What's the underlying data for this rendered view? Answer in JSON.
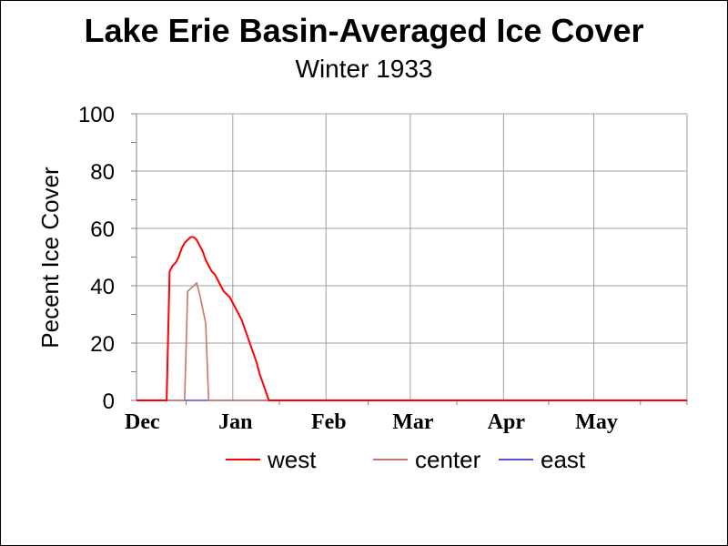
{
  "title": "Lake Erie Basin-Averaged Ice Cover",
  "subtitle": "Winter 1933",
  "chart_data": {
    "type": "line",
    "title": "Lake Erie Basin-Averaged Ice Cover",
    "subtitle": "Winter 1933",
    "xlabel": "",
    "ylabel": "Pecent Ice Cover",
    "ylim": [
      0,
      100
    ],
    "yticks": [
      0,
      20,
      40,
      60,
      80,
      100
    ],
    "xlim": [
      -1,
      182
    ],
    "x_unit": "days from Dec 1",
    "xticks": [
      {
        "label": "Dec",
        "day": 0
      },
      {
        "label": "Jan",
        "day": 31
      },
      {
        "label": "Feb",
        "day": 62
      },
      {
        "label": "Mar",
        "day": 90
      },
      {
        "label": "Apr",
        "day": 121
      },
      {
        "label": "May",
        "day": 151
      }
    ],
    "grid": true,
    "legend": "bottom",
    "series": [
      {
        "name": "west",
        "color": "#ff0000",
        "points": [
          [
            -1,
            0
          ],
          [
            9,
            0
          ],
          [
            10,
            45
          ],
          [
            11,
            47
          ],
          [
            12,
            48
          ],
          [
            13,
            50
          ],
          [
            14,
            53
          ],
          [
            15,
            55
          ],
          [
            16,
            56
          ],
          [
            17,
            57
          ],
          [
            18,
            57
          ],
          [
            19,
            56
          ],
          [
            20,
            54
          ],
          [
            21,
            52
          ],
          [
            22,
            49
          ],
          [
            23,
            47
          ],
          [
            24,
            45
          ],
          [
            25,
            44
          ],
          [
            26,
            42
          ],
          [
            27,
            40
          ],
          [
            28,
            38
          ],
          [
            29,
            37
          ],
          [
            30,
            36
          ],
          [
            31,
            34
          ],
          [
            32,
            32
          ],
          [
            33,
            30
          ],
          [
            34,
            28
          ],
          [
            35,
            25
          ],
          [
            36,
            22
          ],
          [
            37,
            19
          ],
          [
            38,
            16
          ],
          [
            39,
            13
          ],
          [
            40,
            9
          ],
          [
            41,
            6
          ],
          [
            42,
            3
          ],
          [
            43,
            0
          ],
          [
            182,
            0
          ]
        ]
      },
      {
        "name": "center",
        "color": "#c87864",
        "points": [
          [
            -1,
            0
          ],
          [
            15,
            0
          ],
          [
            16,
            38
          ],
          [
            17,
            39
          ],
          [
            18,
            40
          ],
          [
            19,
            41
          ],
          [
            20,
            37
          ],
          [
            21,
            32
          ],
          [
            22,
            27
          ],
          [
            23,
            0
          ],
          [
            182,
            0
          ]
        ]
      },
      {
        "name": "east",
        "color": "#5050d0",
        "points": [
          [
            -1,
            0
          ],
          [
            182,
            0
          ]
        ]
      }
    ]
  }
}
